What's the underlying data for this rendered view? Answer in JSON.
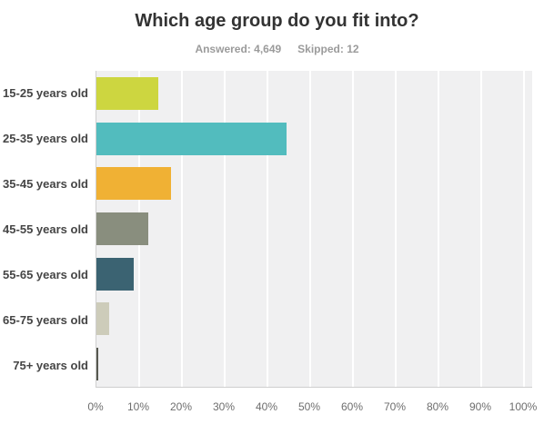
{
  "header": {
    "title": "Which age group do you fit into?",
    "answered_label": "Answered:",
    "answered_value": "4,649",
    "skipped_label": "Skipped:",
    "skipped_value": "12"
  },
  "chart_data": {
    "type": "bar",
    "orientation": "horizontal",
    "title": "Which age group do you fit into?",
    "subtitle": "Answered: 4,649  Skipped: 12",
    "categories": [
      "15-25 years old",
      "25-35 years old",
      "35-45 years old",
      "45-55 years old",
      "55-65 years old",
      "65-75 years old",
      "75+ years old"
    ],
    "values": [
      14.5,
      44.5,
      17.4,
      12.2,
      8.7,
      3.0,
      0.4
    ],
    "unit": "percent",
    "bar_colors": [
      "#cdd640",
      "#52bcbe",
      "#f0b134",
      "#898e7e",
      "#3b6372",
      "#cdccba",
      "#56584f"
    ],
    "x_ticks": [
      "0%",
      "10%",
      "20%",
      "30%",
      "40%",
      "50%",
      "60%",
      "70%",
      "80%",
      "90%",
      "100%"
    ],
    "xlim": [
      0,
      100
    ],
    "grid": true,
    "legend": false,
    "plot_background": "#f0f0f1",
    "gridline_color": "#ffffff",
    "xlabel": "",
    "ylabel": ""
  }
}
